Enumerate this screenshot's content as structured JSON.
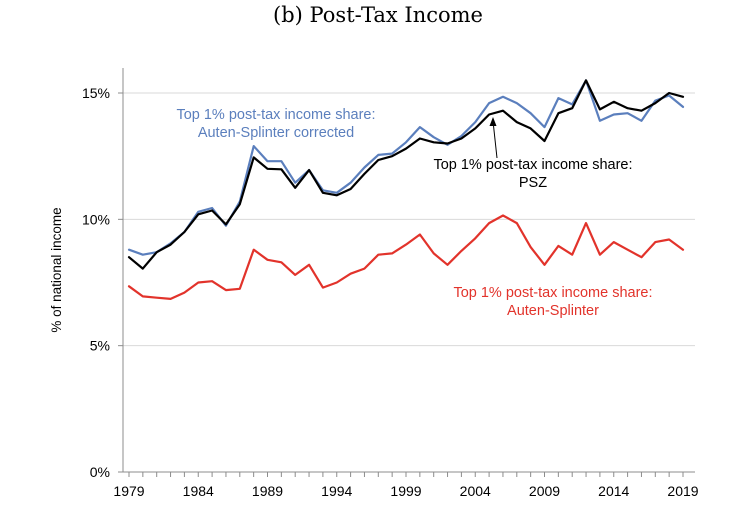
{
  "chart_data": {
    "type": "line",
    "title": "(b) Post-Tax Income",
    "xlabel": "",
    "ylabel": "% of national income",
    "xlim": [
      1979,
      2019
    ],
    "ylim": [
      0,
      15.5
    ],
    "x_ticks": [
      1979,
      1984,
      1989,
      1994,
      1999,
      2004,
      2009,
      2014,
      2019
    ],
    "y_ticks": [
      0,
      5,
      10,
      15
    ],
    "y_tick_labels": [
      "0%",
      "5%",
      "10%",
      "15%"
    ],
    "grid": "horizontal",
    "legend": "none",
    "x": [
      1979,
      1980,
      1981,
      1982,
      1983,
      1984,
      1985,
      1986,
      1987,
      1988,
      1989,
      1990,
      1991,
      1992,
      1993,
      1994,
      1995,
      1996,
      1997,
      1998,
      1999,
      2000,
      2001,
      2002,
      2003,
      2004,
      2005,
      2006,
      2007,
      2008,
      2009,
      2010,
      2011,
      2012,
      2013,
      2014,
      2015,
      2016,
      2017,
      2018,
      2019
    ],
    "series": [
      {
        "name": "Top 1% post-tax income share: PSZ",
        "color": "#000000",
        "values": [
          8.5,
          8.05,
          8.7,
          9.0,
          9.5,
          10.2,
          10.35,
          9.8,
          10.6,
          12.45,
          12.0,
          11.98,
          11.25,
          11.95,
          11.05,
          10.95,
          11.2,
          11.8,
          12.35,
          12.5,
          12.8,
          13.2,
          13.05,
          13.0,
          13.2,
          13.6,
          14.15,
          14.3,
          13.85,
          13.6,
          13.1,
          14.2,
          14.4,
          15.5,
          14.35,
          14.65,
          14.4,
          14.3,
          14.6,
          15.0,
          14.85
        ]
      },
      {
        "name": "Top 1% post-tax income share: Auten-Splinter corrected",
        "color": "#5b7fbd",
        "values": [
          8.8,
          8.6,
          8.7,
          9.05,
          9.5,
          10.3,
          10.45,
          9.75,
          10.7,
          12.9,
          12.3,
          12.3,
          11.45,
          11.95,
          11.15,
          11.05,
          11.45,
          12.05,
          12.55,
          12.6,
          13.05,
          13.65,
          13.25,
          12.95,
          13.3,
          13.85,
          14.6,
          14.85,
          14.6,
          14.2,
          13.65,
          14.8,
          14.55,
          15.5,
          13.9,
          14.15,
          14.2,
          13.9,
          14.7,
          14.9,
          14.45
        ]
      },
      {
        "name": "Top 1% post-tax income share: Auten-Splinter",
        "color": "#e2332b",
        "values": [
          7.35,
          6.95,
          6.9,
          6.85,
          7.1,
          7.5,
          7.55,
          7.2,
          7.25,
          8.8,
          8.4,
          8.3,
          7.8,
          8.2,
          7.3,
          7.5,
          7.85,
          8.05,
          8.6,
          8.65,
          9.0,
          9.4,
          8.65,
          8.2,
          8.75,
          9.25,
          9.85,
          10.15,
          9.85,
          8.9,
          8.2,
          8.95,
          8.6,
          9.85,
          8.6,
          9.1,
          8.8,
          8.5,
          9.1,
          9.2,
          8.8
        ]
      }
    ],
    "annotations": [
      {
        "lines": [
          "Top 1% post-tax income share:",
          "Auten-Splinter corrected"
        ],
        "color": "#5b7fbd"
      },
      {
        "lines": [
          "Top 1% post-tax income share:",
          "PSZ"
        ],
        "color": "#000000"
      },
      {
        "lines": [
          "Top 1% post-tax income share:",
          "Auten-Splinter"
        ],
        "color": "#e2332b"
      }
    ]
  }
}
